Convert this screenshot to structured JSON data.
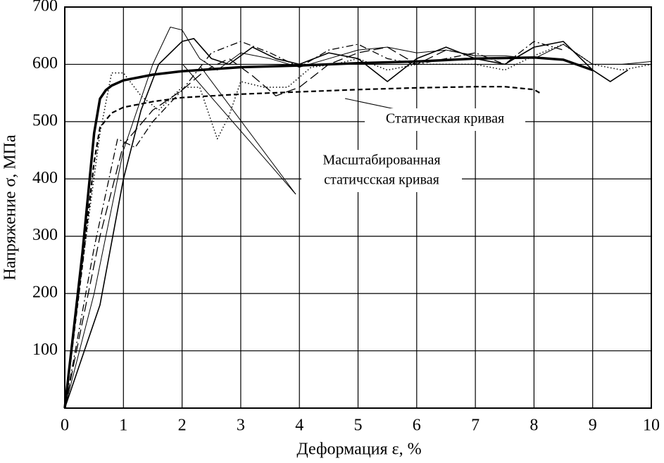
{
  "chart_data": {
    "type": "line",
    "x_label": "Деформация ε, %",
    "y_label": "Напряжение σ, МПа",
    "xlim": [
      0,
      10
    ],
    "xticks": [
      0,
      1,
      2,
      3,
      4,
      5,
      6,
      7,
      8,
      9,
      10
    ],
    "ylim": [
      0,
      700
    ],
    "yticks": [
      100,
      200,
      300,
      400,
      500,
      600,
      700
    ],
    "grid": true,
    "series": [
      {
        "color": "#000000",
        "style": "dashed",
        "width": 2.2,
        "x": [
          0,
          0.3,
          0.5,
          0.6,
          0.8,
          1,
          1.5,
          2,
          3,
          4,
          5,
          6,
          7,
          7.5,
          8,
          8.1
        ],
        "values": [
          0,
          250,
          430,
          490,
          515,
          525,
          535,
          542,
          548,
          552,
          556,
          559,
          561,
          561,
          556,
          550
        ]
      },
      {
        "color": "#000000",
        "style": "solid",
        "width": 3.5,
        "x": [
          0,
          0.3,
          0.5,
          0.6,
          0.7,
          0.8,
          1,
          1.5,
          2,
          3,
          4,
          5,
          6,
          7,
          8,
          8.5,
          9
        ],
        "values": [
          0,
          270,
          480,
          540,
          555,
          563,
          572,
          582,
          588,
          595,
          598,
          602,
          605,
          610,
          612,
          608,
          590
        ]
      },
      {
        "color": "#000000",
        "style": "dotted",
        "width": 1.5,
        "x": [
          0,
          0.3,
          0.6,
          0.8,
          1,
          1.3,
          1.6,
          2,
          2.3,
          2.6,
          2.8,
          3,
          3.4,
          3.8,
          4.2,
          4.6,
          5,
          5.5,
          6,
          6.5,
          7,
          7.5,
          8,
          8.5,
          9,
          9.5,
          10
        ],
        "values": [
          0,
          250,
          480,
          585,
          585,
          545,
          520,
          560,
          560,
          470,
          510,
          570,
          560,
          560,
          595,
          600,
          610,
          590,
          600,
          600,
          600,
          590,
          615,
          635,
          600,
          590,
          600
        ]
      },
      {
        "color": "#000000",
        "style": "solid",
        "width": 1,
        "x": [
          0,
          0.5,
          1,
          1.5,
          1.8,
          2,
          2.3,
          2.6,
          3,
          3.5,
          4,
          4.5,
          5,
          5.5,
          6,
          6.5,
          7,
          7.5,
          8,
          8.5,
          9,
          9.5,
          10
        ],
        "values": [
          0,
          200,
          450,
          600,
          665,
          660,
          610,
          590,
          620,
          610,
          595,
          610,
          625,
          630,
          620,
          625,
          615,
          615,
          610,
          635,
          600,
          600,
          605
        ]
      },
      {
        "color": "#000000",
        "style": "solid",
        "width": 1.6,
        "x": [
          0,
          0.6,
          1,
          1.3,
          1.6,
          2,
          2.2,
          2.5,
          2.8,
          3.2,
          3.6,
          4,
          4.5,
          5,
          5.5,
          6,
          6.5,
          7,
          7.5,
          8,
          8.5,
          9,
          9.3,
          9.6
        ],
        "values": [
          0,
          180,
          400,
          520,
          600,
          640,
          645,
          610,
          600,
          630,
          610,
          600,
          620,
          610,
          570,
          610,
          630,
          610,
          600,
          630,
          640,
          590,
          570,
          590
        ]
      },
      {
        "color": "#000000",
        "style": "dashdot",
        "width": 1.3,
        "x": [
          0,
          0.5,
          0.9,
          1.2,
          1.5,
          2,
          2.5,
          3,
          3.5,
          4,
          4.5,
          5,
          5.5,
          6,
          6.5,
          7,
          7.5,
          8,
          8.5
        ],
        "values": [
          0,
          280,
          470,
          455,
          500,
          555,
          620,
          640,
          620,
          595,
          625,
          635,
          610,
          600,
          610,
          620,
          600,
          640,
          625
        ]
      },
      {
        "color": "#000000",
        "style": "longdash",
        "width": 1.3,
        "x": [
          0,
          0.6,
          1,
          1.5,
          2,
          2.4,
          2.8,
          3.2,
          3.6,
          4,
          4.5,
          5,
          5.5,
          6,
          6.5,
          7
        ],
        "values": [
          0,
          300,
          460,
          520,
          555,
          590,
          610,
          580,
          545,
          560,
          600,
          620,
          630,
          600,
          625,
          615
        ]
      }
    ],
    "annotations": [
      {
        "lines": [
          "Статическая кривая"
        ]
      },
      {
        "lines": [
          "Масштабированная",
          "статичсская кривая"
        ]
      }
    ]
  }
}
